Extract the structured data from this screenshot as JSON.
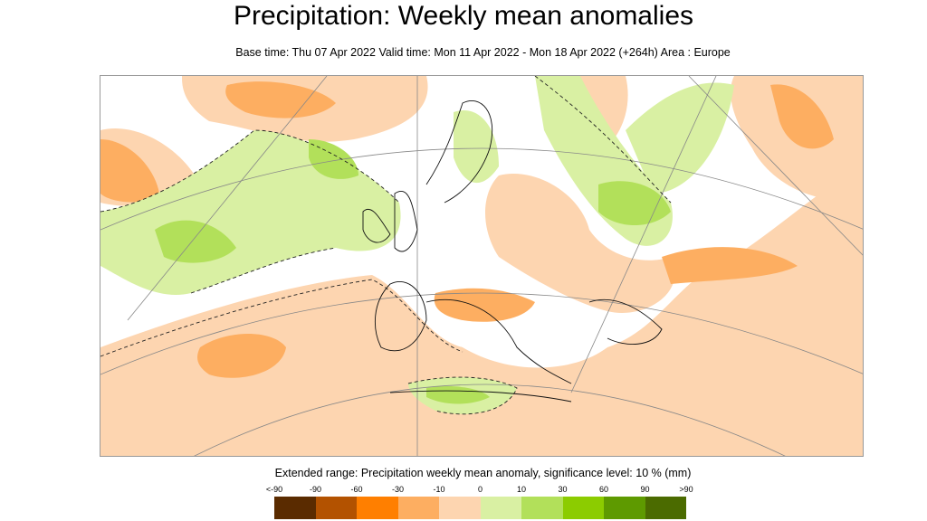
{
  "title": "Precipitation: Weekly mean anomalies",
  "subtitle": "Base time: Thu 07 Apr 2022 Valid time: Mon 11 Apr 2022 - Mon 18 Apr 2022 (+264h) Area : Europe",
  "legend": {
    "title": "Extended range: Precipitation weekly mean anomaly, significance level: 10 % (mm)",
    "ticks": [
      "<-90",
      "-90",
      "-60",
      "-30",
      "-10",
      "0",
      "10",
      "30",
      "60",
      "90",
      ">90"
    ],
    "colors": [
      "#5a2b00",
      "#b35200",
      "#ff7f00",
      "#fdae61",
      "#fdd5b0",
      "#d9f0a3",
      "#b2e05a",
      "#8ccc00",
      "#5e9a00",
      "#4b6b00"
    ]
  }
}
